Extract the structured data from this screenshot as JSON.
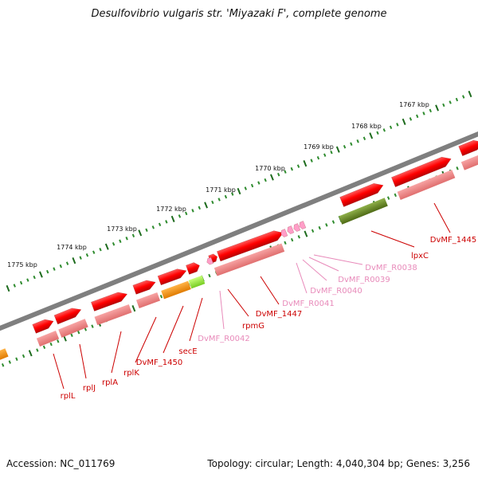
{
  "title": "Desulfovibrio vulgaris str. 'Miyazaki F', complete genome",
  "accession": "Accession: NC_011769",
  "topology": "Topology: circular; Length: 4,040,304 bp; Genes: 3,256",
  "colors": {
    "backbone": "#7f7f7f",
    "gene_cds": "#ff0000",
    "gene_cds_dark": "#b00000",
    "gene_rna": "#ff9ec8",
    "translation_band": "#f08080",
    "label_gene": "#cc0000",
    "label_rna": "#e88aba",
    "operon_orange": "#ff8c00",
    "operon_lime": "#99ee33",
    "operon_olive": "#6b8e23",
    "tick_dark": "#1e6b1e",
    "tick_light": "#2e8b2e"
  },
  "scale": {
    "ticks": [
      {
        "label": "1767 kbp"
      },
      {
        "label": "1768 kbp"
      },
      {
        "label": "1769 kbp"
      },
      {
        "label": "1770 kbp"
      },
      {
        "label": "1771 kbp"
      },
      {
        "label": "1772 kbp"
      },
      {
        "label": "1773 kbp"
      },
      {
        "label": "1774 kbp"
      },
      {
        "label": "1775 kbp"
      }
    ]
  },
  "gene_labels": [
    {
      "text": "rplL",
      "kind": "gene"
    },
    {
      "text": "rplJ",
      "kind": "gene"
    },
    {
      "text": "rplA",
      "kind": "gene"
    },
    {
      "text": "rplK",
      "kind": "gene"
    },
    {
      "text": "DvMF_1450",
      "kind": "gene"
    },
    {
      "text": "secE",
      "kind": "gene"
    },
    {
      "text": "DvMF_R0042",
      "kind": "rna"
    },
    {
      "text": "rpmG",
      "kind": "gene"
    },
    {
      "text": "DvMF_1447",
      "kind": "gene"
    },
    {
      "text": "DvMF_R0041",
      "kind": "rna"
    },
    {
      "text": "DvMF_R0040",
      "kind": "rna"
    },
    {
      "text": "DvMF_R0039",
      "kind": "rna"
    },
    {
      "text": "DvMF_R0038",
      "kind": "rna"
    },
    {
      "text": "lpxC",
      "kind": "gene"
    },
    {
      "text": "DvMF_1445",
      "kind": "gene"
    }
  ]
}
